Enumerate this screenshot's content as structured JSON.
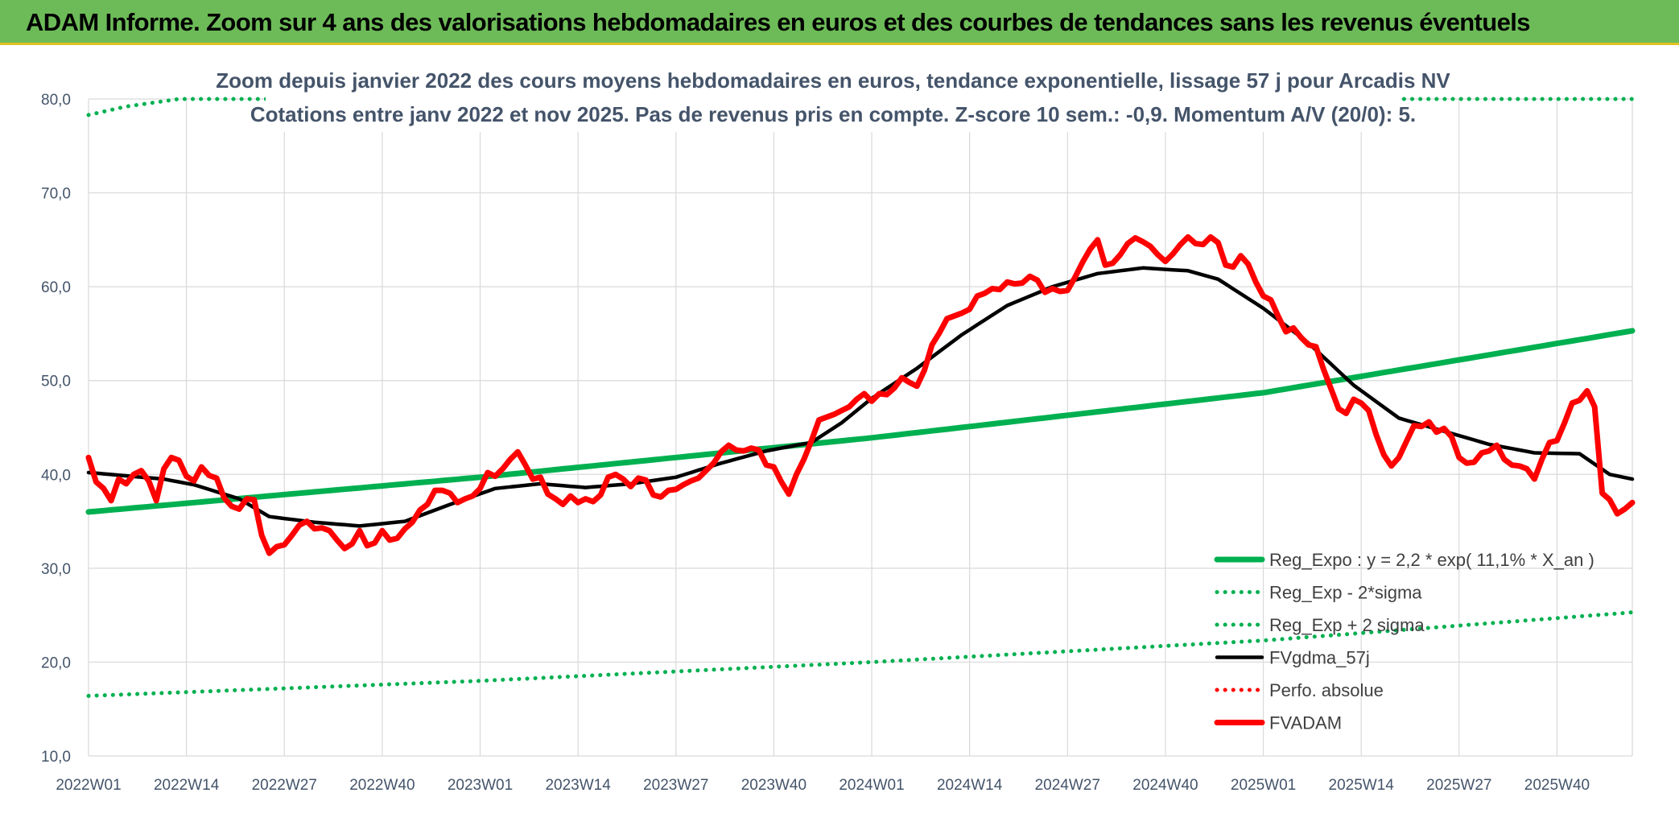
{
  "page": {
    "title": "ADAM Informe. Zoom sur 4 ans des valorisations hebdomadaires en euros et des courbes de tendances sans les revenus éventuels"
  },
  "colors": {
    "title_bg": "#6dbb58",
    "green": "#00b050",
    "black": "#000000",
    "red": "#ff0000",
    "grid": "#d9d9d9"
  },
  "chart_data": {
    "type": "line",
    "title": "Zoom depuis janvier 2022 des cours moyens hebdomadaires en euros, tendance exponentielle, lissage 57 j pour Arcadis NV",
    "subtitle": "Cotations entre janv 2022 et nov 2025. Pas de revenus pris en compte. Z-score 10 sem.: -0,9. Momentum A/V (20/0): 5.",
    "xlabel": "",
    "ylabel": "",
    "ylim": [
      10,
      80
    ],
    "y_ticks": [
      "10,0",
      "20,0",
      "30,0",
      "40,0",
      "50,0",
      "60,0",
      "70,0",
      "80,0"
    ],
    "x_ticks": [
      "2022W01",
      "2022W14",
      "2022W27",
      "2022W40",
      "2023W01",
      "2023W14",
      "2023W27",
      "2023W40",
      "2024W01",
      "2024W14",
      "2024W27",
      "2024W40",
      "2025W01",
      "2025W14",
      "2025W27",
      "2025W40"
    ],
    "x_weeks": 205,
    "grid": true,
    "legend_position": "bottom-right",
    "series": [
      {
        "name": "Reg_Expo : y = 2,2 * exp( 11,1% *  X_an )",
        "style": "solid-thick",
        "color": "#00b050",
        "anchors": [
          [
            0,
            36.0
          ],
          [
            52,
            39.7
          ],
          [
            104,
            43.9
          ],
          [
            156,
            48.7
          ],
          [
            205,
            55.3
          ]
        ]
      },
      {
        "name": "Reg_Exp - 2*sigma",
        "style": "dotted",
        "color": "#00b050",
        "anchors": [
          [
            0,
            16.4
          ],
          [
            52,
            18.0
          ],
          [
            104,
            20.0
          ],
          [
            156,
            22.3
          ],
          [
            205,
            25.3
          ]
        ]
      },
      {
        "name": "Reg_Exp + 2 sigma",
        "style": "dotted",
        "color": "#00b050",
        "anchors": [
          [
            0,
            78.3
          ],
          [
            5,
            79.2
          ],
          [
            12,
            80.0
          ],
          [
            205,
            80.0
          ]
        ]
      },
      {
        "name": "FVgdma_57j",
        "style": "solid",
        "color": "#000000",
        "anchors": [
          [
            0,
            40.2
          ],
          [
            10,
            39.5
          ],
          [
            14,
            38.9
          ],
          [
            20,
            37.4
          ],
          [
            24,
            35.5
          ],
          [
            30,
            34.9
          ],
          [
            36,
            34.5
          ],
          [
            42,
            35.0
          ],
          [
            48,
            36.8
          ],
          [
            54,
            38.5
          ],
          [
            60,
            39.0
          ],
          [
            66,
            38.6
          ],
          [
            72,
            39.0
          ],
          [
            78,
            39.7
          ],
          [
            84,
            41.2
          ],
          [
            90,
            42.5
          ],
          [
            96,
            43.4
          ],
          [
            100,
            45.5
          ],
          [
            104,
            48.1
          ],
          [
            110,
            51.3
          ],
          [
            116,
            54.9
          ],
          [
            122,
            58.0
          ],
          [
            128,
            60.0
          ],
          [
            134,
            61.4
          ],
          [
            140,
            62.0
          ],
          [
            146,
            61.7
          ],
          [
            150,
            60.8
          ],
          [
            156,
            57.7
          ],
          [
            162,
            54.0
          ],
          [
            168,
            49.5
          ],
          [
            174,
            46.0
          ],
          [
            180,
            44.6
          ],
          [
            186,
            43.2
          ],
          [
            192,
            42.3
          ],
          [
            198,
            42.2
          ],
          [
            202,
            40.0
          ],
          [
            205,
            39.5
          ]
        ]
      },
      {
        "name": "Perfo. absolue",
        "style": "dotted",
        "color": "#ff0000",
        "anchors": []
      },
      {
        "name": "FVADAM",
        "style": "solid-thick",
        "color": "#ff0000",
        "anchors": [
          [
            0,
            41.8
          ],
          [
            1,
            39.2
          ],
          [
            2,
            38.5
          ],
          [
            3,
            37.2
          ],
          [
            4,
            39.5
          ],
          [
            5,
            39.0
          ],
          [
            6,
            40.0
          ],
          [
            7,
            40.4
          ],
          [
            8,
            39.3
          ],
          [
            9,
            37.2
          ],
          [
            10,
            40.6
          ],
          [
            11,
            41.8
          ],
          [
            12,
            41.5
          ],
          [
            13,
            39.8
          ],
          [
            14,
            39.3
          ],
          [
            15,
            40.8
          ],
          [
            16,
            39.9
          ],
          [
            17,
            39.6
          ],
          [
            18,
            37.5
          ],
          [
            19,
            36.6
          ],
          [
            20,
            36.3
          ],
          [
            21,
            37.4
          ],
          [
            22,
            37.3
          ],
          [
            23,
            33.5
          ],
          [
            24,
            31.6
          ],
          [
            25,
            32.3
          ],
          [
            26,
            32.5
          ],
          [
            27,
            33.5
          ],
          [
            28,
            34.6
          ],
          [
            29,
            35.0
          ],
          [
            30,
            34.2
          ],
          [
            31,
            34.3
          ],
          [
            32,
            34.0
          ],
          [
            33,
            33.0
          ],
          [
            34,
            32.1
          ],
          [
            35,
            32.6
          ],
          [
            36,
            34.0
          ],
          [
            37,
            32.4
          ],
          [
            38,
            32.7
          ],
          [
            39,
            34.0
          ],
          [
            40,
            33.0
          ],
          [
            41,
            33.2
          ],
          [
            42,
            34.2
          ],
          [
            43,
            34.9
          ],
          [
            44,
            36.2
          ],
          [
            45,
            36.8
          ],
          [
            46,
            38.3
          ],
          [
            47,
            38.3
          ],
          [
            48,
            38.0
          ],
          [
            49,
            37.0
          ],
          [
            50,
            37.4
          ],
          [
            51,
            37.7
          ],
          [
            52,
            38.5
          ],
          [
            53,
            40.2
          ],
          [
            54,
            39.8
          ],
          [
            55,
            40.6
          ],
          [
            56,
            41.6
          ],
          [
            57,
            42.4
          ],
          [
            58,
            41.0
          ],
          [
            59,
            39.5
          ],
          [
            60,
            39.7
          ],
          [
            61,
            37.9
          ],
          [
            62,
            37.4
          ],
          [
            63,
            36.8
          ],
          [
            64,
            37.7
          ],
          [
            65,
            37.0
          ],
          [
            66,
            37.4
          ],
          [
            67,
            37.1
          ],
          [
            68,
            37.8
          ],
          [
            69,
            39.7
          ],
          [
            70,
            40.0
          ],
          [
            71,
            39.5
          ],
          [
            72,
            38.7
          ],
          [
            73,
            39.6
          ],
          [
            74,
            39.4
          ],
          [
            75,
            37.8
          ],
          [
            76,
            37.6
          ],
          [
            77,
            38.3
          ],
          [
            78,
            38.4
          ],
          [
            79,
            38.9
          ],
          [
            80,
            39.3
          ],
          [
            81,
            39.6
          ],
          [
            82,
            40.4
          ],
          [
            83,
            41.2
          ],
          [
            84,
            42.4
          ],
          [
            85,
            43.1
          ],
          [
            86,
            42.6
          ],
          [
            87,
            42.5
          ],
          [
            88,
            42.8
          ],
          [
            89,
            42.6
          ],
          [
            90,
            41.0
          ],
          [
            91,
            40.8
          ],
          [
            92,
            39.2
          ],
          [
            93,
            37.9
          ],
          [
            94,
            40.0
          ],
          [
            95,
            41.6
          ],
          [
            96,
            43.6
          ],
          [
            97,
            45.8
          ],
          [
            98,
            46.1
          ],
          [
            99,
            46.4
          ],
          [
            100,
            46.8
          ],
          [
            101,
            47.2
          ],
          [
            102,
            48.0
          ],
          [
            103,
            48.6
          ],
          [
            104,
            47.8
          ],
          [
            105,
            48.6
          ],
          [
            106,
            48.5
          ],
          [
            107,
            49.2
          ],
          [
            108,
            50.3
          ],
          [
            109,
            49.8
          ],
          [
            110,
            49.4
          ],
          [
            111,
            51.1
          ],
          [
            112,
            53.8
          ],
          [
            113,
            55.1
          ],
          [
            114,
            56.6
          ],
          [
            115,
            56.9
          ],
          [
            116,
            57.2
          ],
          [
            117,
            57.6
          ],
          [
            118,
            59.0
          ],
          [
            119,
            59.3
          ],
          [
            120,
            59.8
          ],
          [
            121,
            59.7
          ],
          [
            122,
            60.5
          ],
          [
            123,
            60.3
          ],
          [
            124,
            60.4
          ],
          [
            125,
            61.1
          ],
          [
            126,
            60.7
          ],
          [
            127,
            59.4
          ],
          [
            128,
            59.8
          ],
          [
            129,
            59.5
          ],
          [
            130,
            59.6
          ],
          [
            131,
            61.0
          ],
          [
            132,
            62.6
          ],
          [
            133,
            64.0
          ],
          [
            134,
            65.0
          ],
          [
            135,
            62.3
          ],
          [
            136,
            62.5
          ],
          [
            137,
            63.4
          ],
          [
            138,
            64.6
          ],
          [
            139,
            65.2
          ],
          [
            140,
            64.8
          ],
          [
            141,
            64.3
          ],
          [
            142,
            63.4
          ],
          [
            143,
            62.7
          ],
          [
            144,
            63.5
          ],
          [
            145,
            64.5
          ],
          [
            146,
            65.3
          ],
          [
            147,
            64.6
          ],
          [
            148,
            64.5
          ],
          [
            149,
            65.3
          ],
          [
            150,
            64.7
          ],
          [
            151,
            62.3
          ],
          [
            152,
            62.1
          ],
          [
            153,
            63.3
          ],
          [
            154,
            62.4
          ],
          [
            155,
            60.5
          ],
          [
            156,
            59.0
          ],
          [
            157,
            58.6
          ],
          [
            158,
            56.8
          ],
          [
            159,
            55.2
          ],
          [
            160,
            55.6
          ],
          [
            161,
            54.6
          ],
          [
            162,
            53.8
          ],
          [
            163,
            53.6
          ],
          [
            164,
            51.2
          ],
          [
            165,
            49.1
          ],
          [
            166,
            47.0
          ],
          [
            167,
            46.5
          ],
          [
            168,
            48.0
          ],
          [
            169,
            47.6
          ],
          [
            170,
            46.8
          ],
          [
            171,
            44.2
          ],
          [
            172,
            42.1
          ],
          [
            173,
            40.9
          ],
          [
            174,
            41.8
          ],
          [
            175,
            43.5
          ],
          [
            176,
            45.2
          ],
          [
            177,
            45.1
          ],
          [
            178,
            45.6
          ],
          [
            179,
            44.5
          ],
          [
            180,
            44.9
          ],
          [
            181,
            44.0
          ],
          [
            182,
            41.8
          ],
          [
            183,
            41.2
          ],
          [
            184,
            41.3
          ],
          [
            185,
            42.3
          ],
          [
            186,
            42.5
          ],
          [
            187,
            43.1
          ],
          [
            188,
            41.6
          ],
          [
            189,
            41.0
          ],
          [
            190,
            40.9
          ],
          [
            191,
            40.6
          ],
          [
            192,
            39.5
          ],
          [
            193,
            41.6
          ],
          [
            194,
            43.4
          ],
          [
            195,
            43.6
          ],
          [
            196,
            45.5
          ],
          [
            197,
            47.6
          ],
          [
            198,
            47.9
          ],
          [
            199,
            48.9
          ],
          [
            200,
            47.2
          ],
          [
            201,
            38.0
          ],
          [
            202,
            37.3
          ],
          [
            203,
            35.8
          ],
          [
            204,
            36.3
          ],
          [
            205,
            37.0
          ]
        ]
      }
    ]
  }
}
